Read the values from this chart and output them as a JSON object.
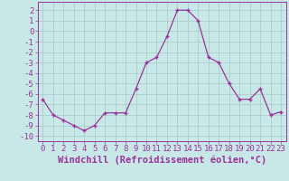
{
  "x": [
    0,
    1,
    2,
    3,
    4,
    5,
    6,
    7,
    8,
    9,
    10,
    11,
    12,
    13,
    14,
    15,
    16,
    17,
    18,
    19,
    20,
    21,
    22,
    23
  ],
  "y": [
    -6.5,
    -8.0,
    -8.5,
    -9.0,
    -9.5,
    -9.0,
    -7.8,
    -7.8,
    -7.8,
    -5.5,
    -3.0,
    -2.5,
    -0.5,
    2.0,
    2.0,
    1.0,
    -2.5,
    -3.0,
    -5.0,
    -6.5,
    -6.5,
    -5.5,
    -8.0,
    -7.7
  ],
  "line_color": "#993399",
  "marker": "+",
  "bg_color": "#c8e8e8",
  "grid_color": "#a8c8c8",
  "xlabel": "Windchill (Refroidissement éolien,°C)",
  "xlim": [
    -0.5,
    23.5
  ],
  "ylim": [
    -10.5,
    2.8
  ],
  "yticks": [
    2,
    1,
    0,
    -1,
    -2,
    -3,
    -4,
    -5,
    -6,
    -7,
    -8,
    -9,
    -10
  ],
  "xticks": [
    0,
    1,
    2,
    3,
    4,
    5,
    6,
    7,
    8,
    9,
    10,
    11,
    12,
    13,
    14,
    15,
    16,
    17,
    18,
    19,
    20,
    21,
    22,
    23
  ],
  "tick_color": "#993399",
  "label_color": "#993399",
  "label_fontsize": 7.5,
  "tick_fontsize": 6.5,
  "spine_color": "#993399"
}
